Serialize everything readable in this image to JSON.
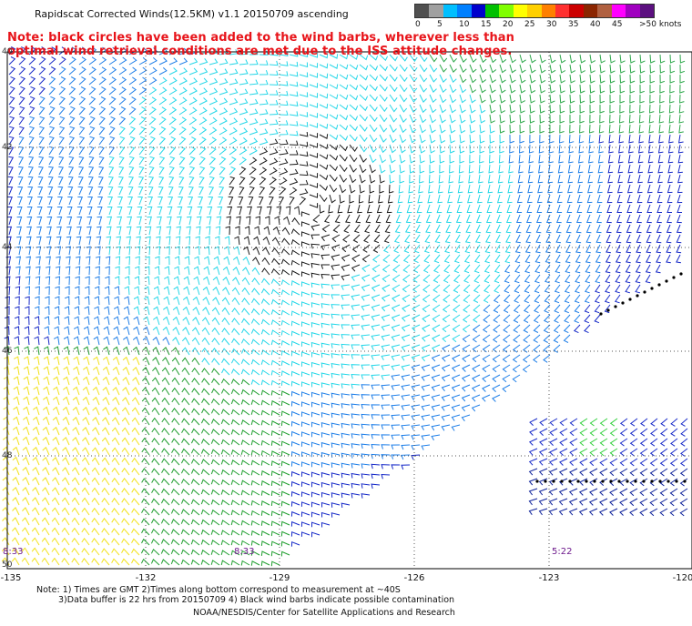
{
  "title": "Rapidscat Corrected Winds(12.5KM) v1.1 20150709 ascending",
  "note": {
    "line1": "Note: black circles have been added to the wind barbs, wherever less than",
    "line2": "optimal wind retrieval conditions are met due to the ISS attitude changes."
  },
  "colorbar": {
    "colors": [
      "#505050",
      "#a0a0a0",
      "#00bfff",
      "#0080ff",
      "#0000cc",
      "#00c000",
      "#80ff00",
      "#ffff00",
      "#ffd000",
      "#ff8000",
      "#ff3030",
      "#cc0000",
      "#8b2500",
      "#b06040",
      "#ff00ff",
      "#a000c0",
      "#5c1080"
    ],
    "labels": [
      "0",
      "5",
      "10",
      "15",
      "20",
      "25",
      "30",
      "35",
      "40",
      "45",
      ">50 knots"
    ]
  },
  "axes": {
    "x_ticks": [
      "-135",
      "-132",
      "-129",
      "-126",
      "-123",
      "-120"
    ],
    "y_ticks": [
      "40",
      "42",
      "44",
      "46",
      "48",
      "50"
    ],
    "x_range": [
      -135,
      -120
    ],
    "y_range": [
      50,
      40
    ]
  },
  "swath_times": [
    "8:33",
    "8:33",
    "5:22"
  ],
  "footnote": {
    "line1": "Note: 1) Times are GMT 2)Times along bottom correspond to measurement at ~40S",
    "line2": "3)Data buffer is 22 hrs from 20150709 4) Black wind barbs indicate possible contamination"
  },
  "credit": "NOAA/NESDIS/Center for Satellite Applications and Research"
}
